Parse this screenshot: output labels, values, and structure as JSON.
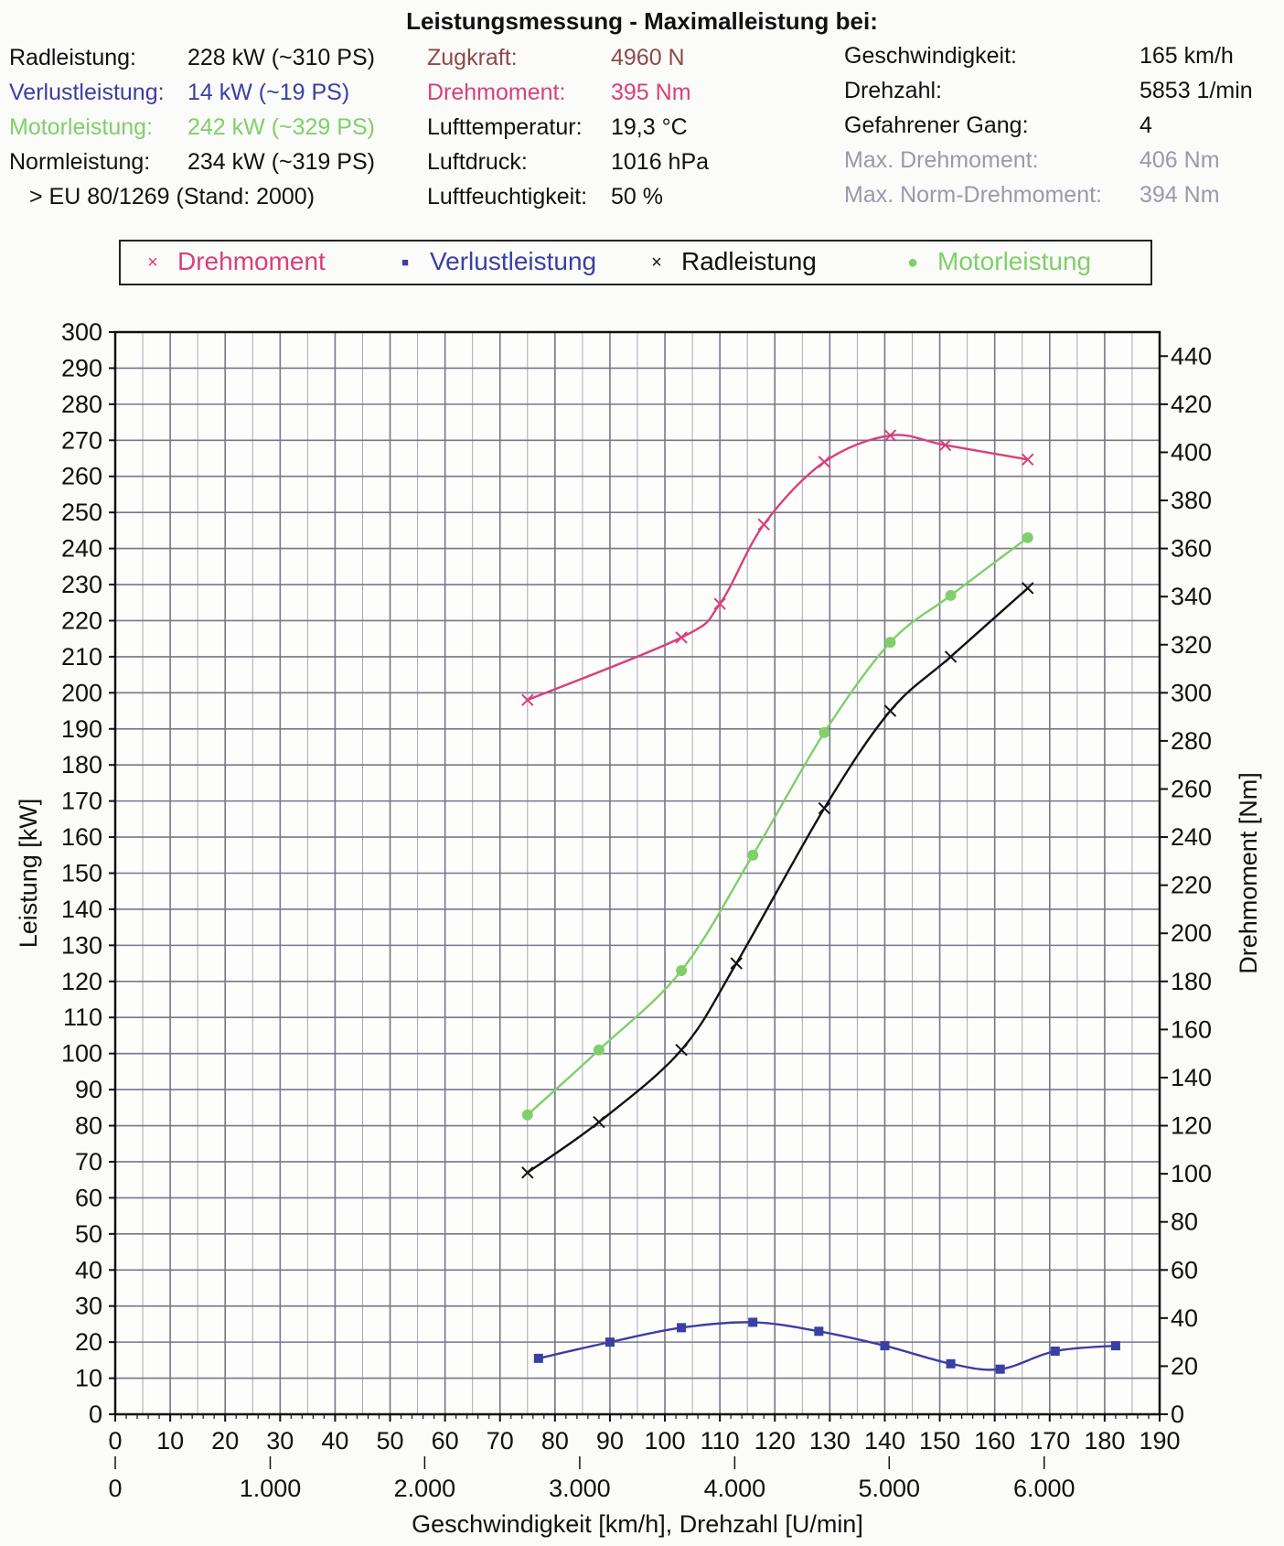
{
  "header": {
    "title": "Leistungsmessung - Maximalleistung bei:"
  },
  "info": {
    "col1": [
      {
        "label": "Radleistung:",
        "value": "228 kW (~310 PS)",
        "color": "#111111"
      },
      {
        "label": "Verlustleistung:",
        "value": "14 kW (~19 PS)",
        "color": "#3b3fa3"
      },
      {
        "label": "Motorleistung:",
        "value": "242 kW (~329 PS)",
        "color": "#7fcf6a"
      },
      {
        "label": "Normleistung:",
        "value": "234 kW (~319 PS)",
        "color": "#111111"
      }
    ],
    "norm_note": "> EU 80/1269 (Stand: 2000)",
    "col2": [
      {
        "label": "Zugkraft:",
        "value": "4960 N",
        "color": "#8b4a4a"
      },
      {
        "label": "Drehmoment:",
        "value": "395 Nm",
        "color": "#d8407a"
      },
      {
        "label": "Lufttemperatur:",
        "value": "19,3 °C",
        "color": "#111111"
      },
      {
        "label": "Luftdruck:",
        "value": "1016 hPa",
        "color": "#111111"
      },
      {
        "label": "Luftfeuchtigkeit:",
        "value": "50 %",
        "color": "#111111"
      }
    ],
    "col3": [
      {
        "label": "Geschwindigkeit:",
        "value": "165 km/h",
        "color": "#111111"
      },
      {
        "label": "Drehzahl:",
        "value": "5853 1/min",
        "color": "#111111"
      },
      {
        "label": "Gefahrener Gang:",
        "value": "4",
        "color": "#111111"
      },
      {
        "label": "Max. Drehmoment:",
        "value": "406 Nm",
        "color": "#9a9aa8"
      },
      {
        "label": "Max. Norm-Drehmoment:",
        "value": "394 Nm",
        "color": "#9a9aa8"
      }
    ]
  },
  "legend": [
    {
      "marker": "×",
      "label": "Drehmoment",
      "color": "#d8407a"
    },
    {
      "marker": "■",
      "label": "Verlustleistung",
      "color": "#3b3fa3"
    },
    {
      "marker": "×",
      "label": "Radleistung",
      "color": "#111111"
    },
    {
      "marker": "●",
      "label": "Motorleistung",
      "color": "#7fcf6a"
    }
  ],
  "chart_data": {
    "type": "line",
    "xlabel": "Geschwindigkeit [km/h], Drehzahl [U/min]",
    "ylabel": "Leistung [kW]",
    "y2label": "Drehmoment [Nm]",
    "xlim": [
      0,
      190
    ],
    "ylim": [
      0,
      300
    ],
    "y2lim": [
      0,
      450
    ],
    "grid": true,
    "legend_position": "top",
    "x_ticks": [
      "0",
      "10",
      "20",
      "30",
      "40",
      "50",
      "60",
      "70",
      "80",
      "90",
      "100",
      "110",
      "120",
      "130",
      "140",
      "150",
      "160",
      "170",
      "180",
      "190"
    ],
    "y_ticks": [
      "0",
      "10",
      "20",
      "30",
      "40",
      "50",
      "60",
      "70",
      "80",
      "90",
      "100",
      "110",
      "120",
      "130",
      "140",
      "150",
      "160",
      "170",
      "180",
      "190",
      "200",
      "210",
      "220",
      "230",
      "240",
      "250",
      "260",
      "270",
      "280",
      "290",
      "300"
    ],
    "y2_ticks": [
      "0",
      "20",
      "40",
      "60",
      "80",
      "100",
      "120",
      "140",
      "160",
      "180",
      "200",
      "220",
      "240",
      "260",
      "280",
      "300",
      "320",
      "340",
      "360",
      "380",
      "400",
      "420",
      "440"
    ],
    "rpm_ticks": [
      {
        "label": "0",
        "speed": 0
      },
      {
        "label": "1.000",
        "speed": 28.2
      },
      {
        "label": "2.000",
        "speed": 56.3
      },
      {
        "label": "3.000",
        "speed": 84.5
      },
      {
        "label": "4.000",
        "speed": 112.7
      },
      {
        "label": "5.000",
        "speed": 140.8
      },
      {
        "label": "6.000",
        "speed": 169
      }
    ],
    "series": [
      {
        "name": "Drehmoment",
        "axis": "right",
        "color": "#d8407a",
        "marker": "x",
        "points": [
          [
            75,
            297
          ],
          [
            103,
            323
          ],
          [
            110,
            337
          ],
          [
            118,
            370
          ],
          [
            129,
            396
          ],
          [
            141,
            407
          ],
          [
            151,
            403
          ],
          [
            166,
            397
          ]
        ]
      },
      {
        "name": "Verlustleistung",
        "axis": "left",
        "color": "#3b3fa3",
        "marker": "square",
        "points": [
          [
            77,
            15.5
          ],
          [
            90,
            20
          ],
          [
            103,
            24
          ],
          [
            116,
            25.5
          ],
          [
            128,
            23
          ],
          [
            140,
            19
          ],
          [
            152,
            14
          ],
          [
            161,
            12.5
          ],
          [
            171,
            17.5
          ],
          [
            182,
            19
          ]
        ]
      },
      {
        "name": "Radleistung",
        "axis": "left",
        "color": "#111111",
        "marker": "x",
        "points": [
          [
            75,
            67
          ],
          [
            88,
            81
          ],
          [
            103,
            101
          ],
          [
            113,
            125
          ],
          [
            129,
            168
          ],
          [
            141,
            195
          ],
          [
            152,
            210
          ],
          [
            166,
            229
          ]
        ]
      },
      {
        "name": "Motorleistung",
        "axis": "left",
        "color": "#7fcf6a",
        "marker": "circle",
        "points": [
          [
            75,
            83
          ],
          [
            88,
            101
          ],
          [
            103,
            123
          ],
          [
            116,
            155
          ],
          [
            129,
            189
          ],
          [
            141,
            214
          ],
          [
            152,
            227
          ],
          [
            166,
            243
          ]
        ]
      }
    ]
  }
}
